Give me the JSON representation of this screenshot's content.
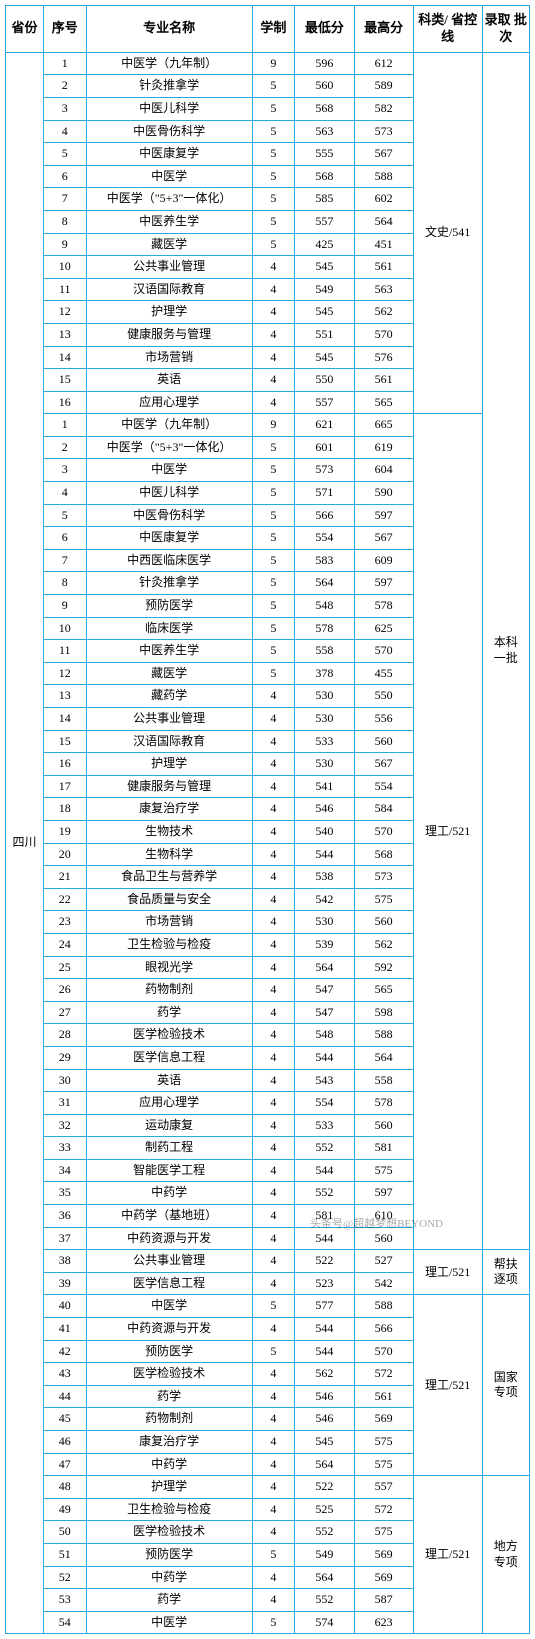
{
  "table": {
    "border_color": "#29a7e1",
    "bg_color": "#ffffff",
    "text_color": "#000000",
    "font_size": 12,
    "header_font_size": 13,
    "headers": {
      "province": "省份",
      "seq": "序号",
      "major": "专业名称",
      "duration": "学制",
      "min": "最低分",
      "max": "最高分",
      "category": "科类/\n省控线",
      "batch": "录取\n批次"
    },
    "province": "四川",
    "groups": [
      {
        "category": "文史/541",
        "batch": null,
        "rows": [
          {
            "seq": 1,
            "major": "中医学（九年制）",
            "dur": 9,
            "min": 596,
            "max": 612
          },
          {
            "seq": 2,
            "major": "针灸推拿学",
            "dur": 5,
            "min": 560,
            "max": 589
          },
          {
            "seq": 3,
            "major": "中医儿科学",
            "dur": 5,
            "min": 568,
            "max": 582
          },
          {
            "seq": 4,
            "major": "中医骨伤科学",
            "dur": 5,
            "min": 563,
            "max": 573
          },
          {
            "seq": 5,
            "major": "中医康复学",
            "dur": 5,
            "min": 555,
            "max": 567
          },
          {
            "seq": 6,
            "major": "中医学",
            "dur": 5,
            "min": 568,
            "max": 588
          },
          {
            "seq": 7,
            "major": "中医学（\"5+3\"一体化）",
            "dur": 5,
            "min": 585,
            "max": 602
          },
          {
            "seq": 8,
            "major": "中医养生学",
            "dur": 5,
            "min": 557,
            "max": 564
          },
          {
            "seq": 9,
            "major": "藏医学",
            "dur": 5,
            "min": 425,
            "max": 451
          },
          {
            "seq": 10,
            "major": "公共事业管理",
            "dur": 4,
            "min": 545,
            "max": 561
          },
          {
            "seq": 11,
            "major": "汉语国际教育",
            "dur": 4,
            "min": 549,
            "max": 563
          },
          {
            "seq": 12,
            "major": "护理学",
            "dur": 4,
            "min": 545,
            "max": 562
          },
          {
            "seq": 13,
            "major": "健康服务与管理",
            "dur": 4,
            "min": 551,
            "max": 570
          },
          {
            "seq": 14,
            "major": "市场营销",
            "dur": 4,
            "min": 545,
            "max": 576
          },
          {
            "seq": 15,
            "major": "英语",
            "dur": 4,
            "min": 550,
            "max": 561
          },
          {
            "seq": 16,
            "major": "应用心理学",
            "dur": 4,
            "min": 557,
            "max": 565
          }
        ]
      },
      {
        "category": "理工/521",
        "batch": "本科\n一批",
        "batch_span_prev": true,
        "rows": [
          {
            "seq": 1,
            "major": "中医学（九年制）",
            "dur": 9,
            "min": 621,
            "max": 665
          },
          {
            "seq": 2,
            "major": "中医学（\"5+3\"一体化）",
            "dur": 5,
            "min": 601,
            "max": 619
          },
          {
            "seq": 3,
            "major": "中医学",
            "dur": 5,
            "min": 573,
            "max": 604
          },
          {
            "seq": 4,
            "major": "中医儿科学",
            "dur": 5,
            "min": 571,
            "max": 590
          },
          {
            "seq": 5,
            "major": "中医骨伤科学",
            "dur": 5,
            "min": 566,
            "max": 597
          },
          {
            "seq": 6,
            "major": "中医康复学",
            "dur": 5,
            "min": 554,
            "max": 567
          },
          {
            "seq": 7,
            "major": "中西医临床医学",
            "dur": 5,
            "min": 583,
            "max": 609
          },
          {
            "seq": 8,
            "major": "针灸推拿学",
            "dur": 5,
            "min": 564,
            "max": 597
          },
          {
            "seq": 9,
            "major": "预防医学",
            "dur": 5,
            "min": 548,
            "max": 578
          },
          {
            "seq": 10,
            "major": "临床医学",
            "dur": 5,
            "min": 578,
            "max": 625
          },
          {
            "seq": 11,
            "major": "中医养生学",
            "dur": 5,
            "min": 558,
            "max": 570
          },
          {
            "seq": 12,
            "major": "藏医学",
            "dur": 5,
            "min": 378,
            "max": 455
          },
          {
            "seq": 13,
            "major": "藏药学",
            "dur": 4,
            "min": 530,
            "max": 550
          },
          {
            "seq": 14,
            "major": "公共事业管理",
            "dur": 4,
            "min": 530,
            "max": 556
          },
          {
            "seq": 15,
            "major": "汉语国际教育",
            "dur": 4,
            "min": 533,
            "max": 560
          },
          {
            "seq": 16,
            "major": "护理学",
            "dur": 4,
            "min": 530,
            "max": 567
          },
          {
            "seq": 17,
            "major": "健康服务与管理",
            "dur": 4,
            "min": 541,
            "max": 554
          },
          {
            "seq": 18,
            "major": "康复治疗学",
            "dur": 4,
            "min": 546,
            "max": 584
          },
          {
            "seq": 19,
            "major": "生物技术",
            "dur": 4,
            "min": 540,
            "max": 570
          },
          {
            "seq": 20,
            "major": "生物科学",
            "dur": 4,
            "min": 544,
            "max": 568
          },
          {
            "seq": 21,
            "major": "食品卫生与营养学",
            "dur": 4,
            "min": 538,
            "max": 573
          },
          {
            "seq": 22,
            "major": "食品质量与安全",
            "dur": 4,
            "min": 542,
            "max": 575
          },
          {
            "seq": 23,
            "major": "市场营销",
            "dur": 4,
            "min": 530,
            "max": 560
          },
          {
            "seq": 24,
            "major": "卫生检验与检疫",
            "dur": 4,
            "min": 539,
            "max": 562
          },
          {
            "seq": 25,
            "major": "眼视光学",
            "dur": 4,
            "min": 564,
            "max": 592
          },
          {
            "seq": 26,
            "major": "药物制剂",
            "dur": 4,
            "min": 547,
            "max": 565
          },
          {
            "seq": 27,
            "major": "药学",
            "dur": 4,
            "min": 547,
            "max": 598
          },
          {
            "seq": 28,
            "major": "医学检验技术",
            "dur": 4,
            "min": 548,
            "max": 588
          },
          {
            "seq": 29,
            "major": "医学信息工程",
            "dur": 4,
            "min": 544,
            "max": 564
          },
          {
            "seq": 30,
            "major": "英语",
            "dur": 4,
            "min": 543,
            "max": 558
          },
          {
            "seq": 31,
            "major": "应用心理学",
            "dur": 4,
            "min": 554,
            "max": 578
          },
          {
            "seq": 32,
            "major": "运动康复",
            "dur": 4,
            "min": 533,
            "max": 560
          },
          {
            "seq": 33,
            "major": "制药工程",
            "dur": 4,
            "min": 552,
            "max": 581
          },
          {
            "seq": 34,
            "major": "智能医学工程",
            "dur": 4,
            "min": 544,
            "max": 575
          },
          {
            "seq": 35,
            "major": "中药学",
            "dur": 4,
            "min": 552,
            "max": 597
          },
          {
            "seq": 36,
            "major": "中药学（基地班）",
            "dur": 4,
            "min": 581,
            "max": 610
          },
          {
            "seq": 37,
            "major": "中药资源与开发",
            "dur": 4,
            "min": 544,
            "max": 560
          }
        ]
      },
      {
        "category": "理工/521",
        "batch": "帮扶\n逐项",
        "rows": [
          {
            "seq": 38,
            "major": "公共事业管理",
            "dur": 4,
            "min": 522,
            "max": 527
          },
          {
            "seq": 39,
            "major": "医学信息工程",
            "dur": 4,
            "min": 523,
            "max": 542
          }
        ]
      },
      {
        "category": "理工/521",
        "batch": "国家\n专项",
        "rows": [
          {
            "seq": 40,
            "major": "中医学",
            "dur": 5,
            "min": 577,
            "max": 588
          },
          {
            "seq": 41,
            "major": "中药资源与开发",
            "dur": 4,
            "min": 544,
            "max": 566
          },
          {
            "seq": 42,
            "major": "预防医学",
            "dur": 5,
            "min": 544,
            "max": 570
          },
          {
            "seq": 43,
            "major": "医学检验技术",
            "dur": 4,
            "min": 562,
            "max": 572
          },
          {
            "seq": 44,
            "major": "药学",
            "dur": 4,
            "min": 546,
            "max": 561
          },
          {
            "seq": 45,
            "major": "药物制剂",
            "dur": 4,
            "min": 546,
            "max": 569
          },
          {
            "seq": 46,
            "major": "康复治疗学",
            "dur": 4,
            "min": 545,
            "max": 575
          },
          {
            "seq": 47,
            "major": "中药学",
            "dur": 4,
            "min": 564,
            "max": 575
          }
        ]
      },
      {
        "category": "理工/521",
        "batch": "地方\n专项",
        "rows": [
          {
            "seq": 48,
            "major": "护理学",
            "dur": 4,
            "min": 522,
            "max": 557
          },
          {
            "seq": 49,
            "major": "卫生检验与检疫",
            "dur": 4,
            "min": 525,
            "max": 572
          },
          {
            "seq": 50,
            "major": "医学检验技术",
            "dur": 4,
            "min": 552,
            "max": 575
          },
          {
            "seq": 51,
            "major": "预防医学",
            "dur": 5,
            "min": 549,
            "max": 569
          },
          {
            "seq": 52,
            "major": "中药学",
            "dur": 4,
            "min": 564,
            "max": 569
          },
          {
            "seq": 53,
            "major": "药学",
            "dur": 4,
            "min": 552,
            "max": 587
          },
          {
            "seq": 54,
            "major": "中医学",
            "dur": 5,
            "min": 574,
            "max": 623
          }
        ]
      }
    ]
  },
  "watermark": "头条号@超越梦想BEYOND"
}
